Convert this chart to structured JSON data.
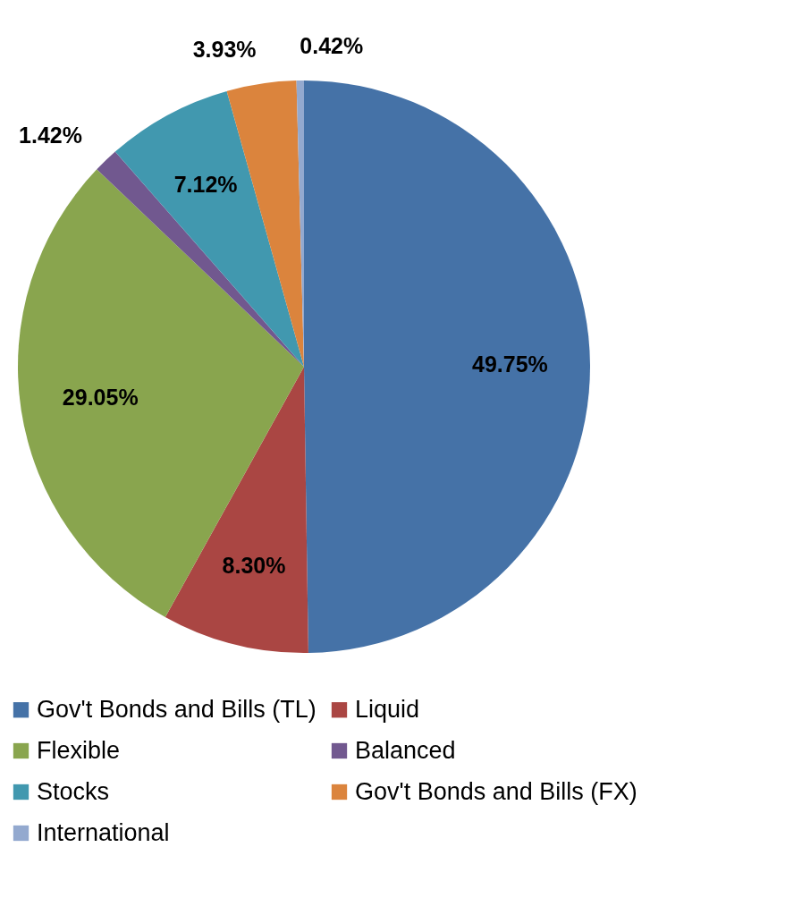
{
  "chart_data": {
    "type": "pie",
    "categories": [
      "Gov't Bonds and Bills (TL)",
      "Liquid",
      "Flexible",
      "Balanced",
      "Stocks",
      "Gov't Bonds and Bills (FX)",
      "International"
    ],
    "values": [
      49.75,
      8.3,
      29.05,
      1.42,
      7.12,
      3.93,
      0.42
    ],
    "colors": [
      "#4572a7",
      "#aa4643",
      "#89a54e",
      "#71588f",
      "#4198af",
      "#db843d",
      "#93a9cf"
    ],
    "value_labels": [
      "49.75%",
      "8.30%",
      "29.05%",
      "1.42%",
      "7.12%",
      "3.93%",
      "0.42%"
    ],
    "legend": "bottom"
  }
}
